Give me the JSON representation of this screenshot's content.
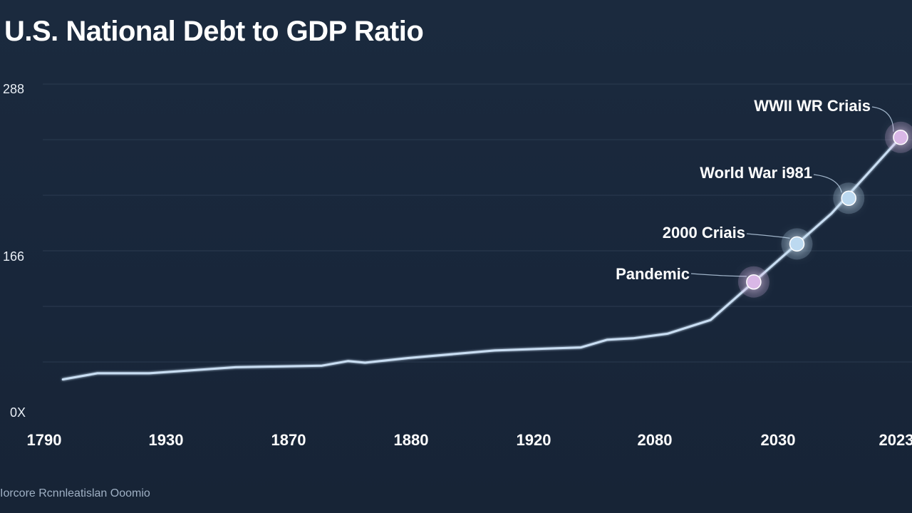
{
  "title": "U.S. National Debt to GDP Ratio",
  "footer": "Iorcore Rcnnleatislan Ooomio",
  "colors": {
    "background": "#19273a",
    "line": "#c9def3",
    "gridline": "#2b3b50",
    "marker_pink": "#d9b7e6",
    "marker_blue": "#bcd9f0"
  },
  "chart_data": {
    "type": "line",
    "title": "U.S. National Debt to GDP Ratio",
    "xlabel": "",
    "ylabel": "",
    "x_tick_labels": [
      "1790",
      "1930",
      "1870",
      "1880",
      "1920",
      "2080",
      "2030",
      "2023"
    ],
    "y_tick_labels": [
      "0X",
      "166",
      "288"
    ],
    "grid": true,
    "series": [
      {
        "values": [
          [
            0.0,
            0.26
          ],
          [
            0.4,
            0.3
          ],
          [
            1.0,
            0.3
          ],
          [
            2.0,
            0.34
          ],
          [
            3.0,
            0.35
          ],
          [
            3.3,
            0.38
          ],
          [
            3.5,
            0.37
          ],
          [
            4.0,
            0.4
          ],
          [
            5.0,
            0.45
          ],
          [
            6.0,
            0.47
          ],
          [
            6.3,
            0.52
          ],
          [
            6.6,
            0.53
          ],
          [
            7.0,
            0.56
          ],
          [
            7.5,
            0.65
          ],
          [
            8.0,
            0.9
          ],
          [
            8.4,
            1.1
          ],
          [
            8.9,
            1.35
          ],
          [
            9.3,
            1.6
          ],
          [
            9.7,
            1.85
          ]
        ]
      }
    ],
    "annotations": [
      {
        "label": "Pandemic",
        "x": 8.0,
        "y": 0.9,
        "marker": "pink"
      },
      {
        "label": "2000 Criais",
        "x": 8.5,
        "y": 1.15,
        "marker": "blue"
      },
      {
        "label": "World War i981",
        "x": 9.1,
        "y": 1.45,
        "marker": "blue"
      },
      {
        "label": "WWII WR Criais",
        "x": 9.7,
        "y": 1.85,
        "marker": "pink"
      }
    ],
    "ylim": [
      0,
      2.2
    ],
    "xlim": [
      -0.2,
      9.75
    ]
  }
}
